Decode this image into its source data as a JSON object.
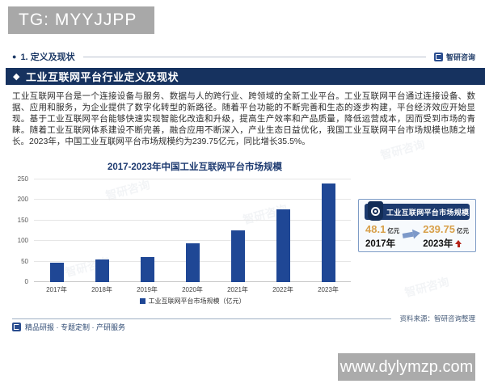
{
  "overlay": {
    "tg_badge": "TG: MYYJJPP",
    "site_badge": "www.dylymzp.com"
  },
  "header": {
    "section_label": "1. 定义及现状",
    "brand": "智研咨询",
    "banner_title": "工业互联网平台行业定义及现状"
  },
  "paragraph": "工业互联网平台是一个连接设备与服务、数据与人的跨行业、跨领域的全新工业平台。工业互联网平台通过连接设备、数据、应用和服务，为企业提供了数字化转型的新路径。随着平台功能的不断完善和生态的逐步构建，平台经济效应开始显现。基于工业互联网平台能够快速实现智能化改造和升级，提高生产效率和产品质量，降低运营成本，因而受到市场的青睐。随着工业互联网体系建设不断完善，融合应用不断深入，产业生态日益优化，我国工业互联网平台市场规模也随之增长。2023年，中国工业互联网平台市场规模约为239.75亿元，同比增长35.5%。",
  "chart_data": {
    "type": "bar",
    "title": "2017-2023年中国工业互联网平台市场规模",
    "categories": [
      "2017年",
      "2018年",
      "2019年",
      "2020年",
      "2021年",
      "2022年",
      "2023年"
    ],
    "values": [
      48.1,
      54.4,
      62.0,
      94.3,
      126.9,
      176.9,
      239.75
    ],
    "legend": "工业互联网平台市场规模（亿元）",
    "xlabel": "",
    "ylabel": "",
    "ylim": [
      0,
      250
    ],
    "ytick_step": 50,
    "grid": true,
    "legend_position": "bottom",
    "bar_color": "#1f4795"
  },
  "infobox": {
    "title": "工业互联网平台市场规模",
    "start": {
      "value": "48.1",
      "unit": "亿元",
      "year": "2017年"
    },
    "end": {
      "value": "239.75",
      "unit": "亿元",
      "year": "2023年"
    }
  },
  "footer": {
    "source": "资料来源：智研咨询整理",
    "tagline": "精品研报 · 专题定制 · 产研服务"
  },
  "watermark": "智研咨询",
  "colors": {
    "banner_navy": "#16325f",
    "bar_navy": "#1f4795",
    "metric_gold": "#d8a04a",
    "up_arrow_red": "#b5231a",
    "badge_gray": "#a9a9a9"
  }
}
